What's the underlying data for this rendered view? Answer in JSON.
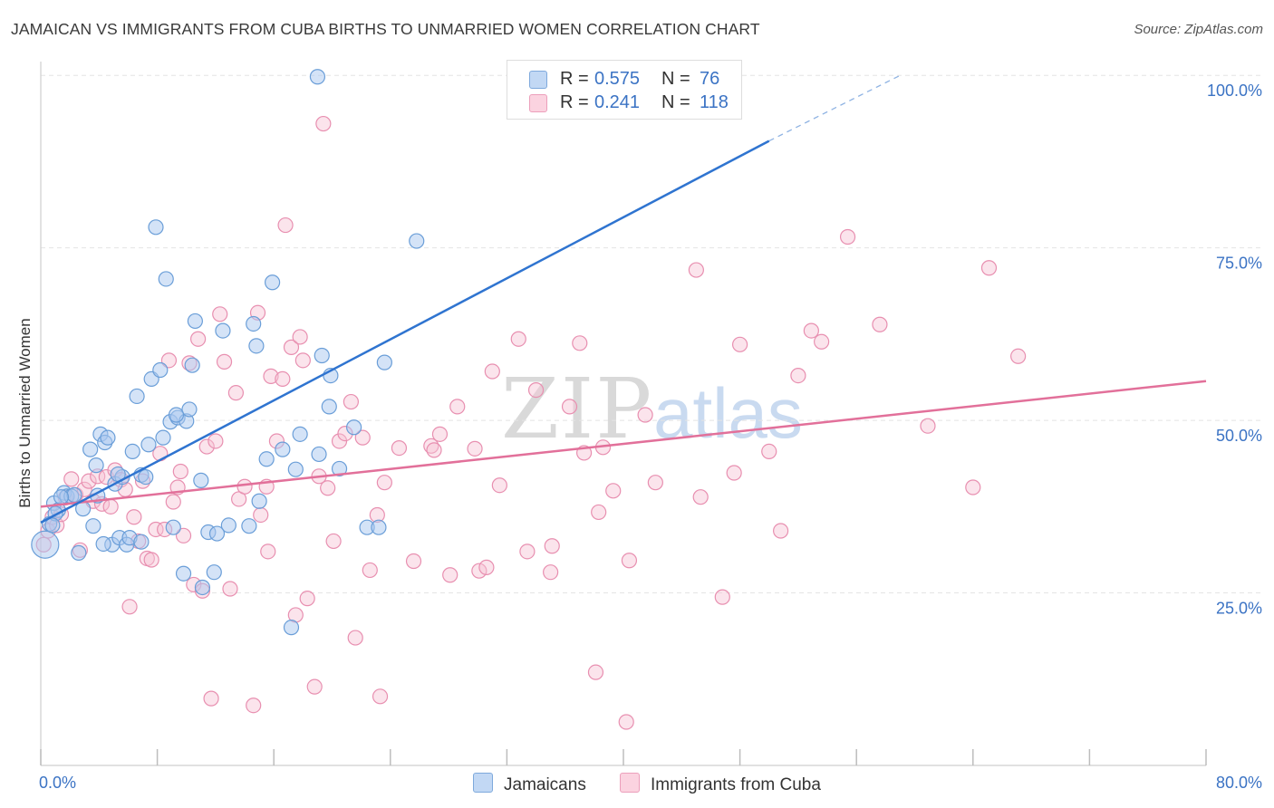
{
  "header": {
    "title": "JAMAICAN VS IMMIGRANTS FROM CUBA BIRTHS TO UNMARRIED WOMEN CORRELATION CHART",
    "source": "Source: ZipAtlas.com"
  },
  "watermark": {
    "zip": "ZIP",
    "atlas": "atlas"
  },
  "colors": {
    "jamaicans_fill": "#a9c8f0",
    "jamaicans_stroke": "#6a9ed8",
    "jamaicans_line": "#2f74d0",
    "cuba_fill": "#f7c4d4",
    "cuba_stroke": "#e88fb0",
    "cuba_line": "#e2709a",
    "axis_label": "#3b73c4",
    "grid": "#e4e4e4"
  },
  "legend": {
    "rows": [
      {
        "r_label": "R =",
        "r_value": "0.575",
        "n_label": "N =",
        "n_value": "76"
      },
      {
        "r_label": "R =",
        "r_value": "0.241",
        "n_label": "N =",
        "n_value": "118"
      }
    ]
  },
  "bottom_legend": {
    "series1": "Jamaicans",
    "series2": "Immigrants from Cuba"
  },
  "chart_data": {
    "type": "scatter",
    "title": "JAMAICAN VS IMMIGRANTS FROM CUBA BIRTHS TO UNMARRIED WOMEN CORRELATION CHART",
    "xlabel": "",
    "ylabel": "Births to Unmarried Women",
    "xlim": [
      0,
      80
    ],
    "ylim": [
      0,
      102
    ],
    "x_tick_labels": [
      "0.0%",
      "80.0%"
    ],
    "y_ticks": [
      25,
      50,
      75,
      100
    ],
    "y_tick_labels": [
      "25.0%",
      "50.0%",
      "75.0%",
      "100.0%"
    ],
    "grid": true,
    "legend_position": "top-center",
    "series": [
      {
        "name": "Jamaicans",
        "R": 0.575,
        "N": 76,
        "trend": {
          "x0": 0,
          "y0": 35.2,
          "x1": 50,
          "y1": 90.5,
          "dashed_to_x": 59,
          "dashed_to_y": 100
        },
        "points": [
          [
            0.3,
            32
          ],
          [
            0.6,
            35
          ],
          [
            0.9,
            38
          ],
          [
            1.2,
            37
          ],
          [
            1.6,
            39.5
          ],
          [
            1.8,
            39
          ],
          [
            2.1,
            39
          ],
          [
            2.6,
            30.8
          ],
          [
            2.9,
            37.2
          ],
          [
            3.4,
            45.8
          ],
          [
            3.6,
            34.7
          ],
          [
            3.8,
            43.5
          ],
          [
            4.1,
            48
          ],
          [
            4.4,
            46.8
          ],
          [
            4.6,
            47.5
          ],
          [
            4.9,
            32
          ],
          [
            5.1,
            40.8
          ],
          [
            5.4,
            33
          ],
          [
            5.6,
            41.8
          ],
          [
            5.9,
            32
          ],
          [
            6.1,
            33
          ],
          [
            6.3,
            45.5
          ],
          [
            6.6,
            53.5
          ],
          [
            6.9,
            42.1
          ],
          [
            7.2,
            41.8
          ],
          [
            7.4,
            46.5
          ],
          [
            7.6,
            56
          ],
          [
            7.9,
            78
          ],
          [
            8.2,
            57.3
          ],
          [
            8.4,
            47.5
          ],
          [
            8.6,
            70.5
          ],
          [
            8.9,
            49.8
          ],
          [
            9.1,
            34.5
          ],
          [
            9.4,
            50.4
          ],
          [
            9.8,
            27.8
          ],
          [
            10.0,
            49.9
          ],
          [
            10.2,
            51.6
          ],
          [
            10.4,
            58
          ],
          [
            10.6,
            64.4
          ],
          [
            11.0,
            41.3
          ],
          [
            11.1,
            25.8
          ],
          [
            11.5,
            33.8
          ],
          [
            11.9,
            28
          ],
          [
            12.5,
            63
          ],
          [
            12.9,
            34.8
          ],
          [
            14.3,
            34.7
          ],
          [
            14.6,
            64
          ],
          [
            14.8,
            60.8
          ],
          [
            15.0,
            38.3
          ],
          [
            15.9,
            70
          ],
          [
            16.6,
            45.8
          ],
          [
            17.2,
            20
          ],
          [
            17.5,
            42.9
          ],
          [
            17.8,
            48
          ],
          [
            19.1,
            45.1
          ],
          [
            19.3,
            59.4
          ],
          [
            19.8,
            52
          ],
          [
            19.9,
            56.5
          ],
          [
            20.5,
            43
          ],
          [
            21.5,
            49
          ],
          [
            22.4,
            34.5
          ],
          [
            23.2,
            34.5
          ],
          [
            23.6,
            58.4
          ],
          [
            25.8,
            76
          ],
          [
            19.0,
            99.8
          ],
          [
            1.0,
            36.5
          ],
          [
            2.3,
            39.2
          ],
          [
            1.4,
            38.9
          ],
          [
            0.8,
            34.8
          ],
          [
            6.9,
            32.4
          ],
          [
            3.9,
            39.1
          ],
          [
            5.3,
            42.2
          ],
          [
            9.3,
            50.8
          ],
          [
            12.1,
            33.6
          ],
          [
            15.5,
            44.4
          ],
          [
            4.3,
            32.1
          ]
        ]
      },
      {
        "name": "Immigrants from Cuba",
        "R": 0.241,
        "N": 118,
        "trend": {
          "x0": 0,
          "y0": 37.5,
          "x1": 80,
          "y1": 55.7
        },
        "points": [
          [
            0.2,
            32
          ],
          [
            0.5,
            34
          ],
          [
            0.8,
            36
          ],
          [
            1.1,
            34.8
          ],
          [
            1.4,
            36.4
          ],
          [
            1.7,
            38.8
          ],
          [
            2.1,
            41.5
          ],
          [
            2.4,
            39.2
          ],
          [
            2.7,
            31.2
          ],
          [
            3.0,
            40
          ],
          [
            3.3,
            41.2
          ],
          [
            3.6,
            38.3
          ],
          [
            3.9,
            41.9
          ],
          [
            4.2,
            37.9
          ],
          [
            4.5,
            41.8
          ],
          [
            4.8,
            37.5
          ],
          [
            5.1,
            42.8
          ],
          [
            5.5,
            41.4
          ],
          [
            5.8,
            40
          ],
          [
            6.1,
            23
          ],
          [
            6.4,
            36
          ],
          [
            6.7,
            32.5
          ],
          [
            7.0,
            41.2
          ],
          [
            7.3,
            30
          ],
          [
            7.6,
            29.8
          ],
          [
            7.9,
            34.2
          ],
          [
            8.2,
            45.2
          ],
          [
            8.5,
            34.2
          ],
          [
            8.8,
            58.7
          ],
          [
            9.1,
            38.2
          ],
          [
            9.4,
            40.3
          ],
          [
            9.8,
            33.3
          ],
          [
            10.2,
            58.3
          ],
          [
            10.5,
            26.2
          ],
          [
            10.8,
            61.8
          ],
          [
            11.1,
            25.3
          ],
          [
            11.4,
            46.2
          ],
          [
            11.7,
            9.7
          ],
          [
            12.0,
            47
          ],
          [
            12.3,
            65.4
          ],
          [
            12.6,
            58.5
          ],
          [
            13.0,
            25.6
          ],
          [
            13.4,
            54
          ],
          [
            13.6,
            38.6
          ],
          [
            14.0,
            40.4
          ],
          [
            14.6,
            8.7
          ],
          [
            14.9,
            65.6
          ],
          [
            15.5,
            40.4
          ],
          [
            15.6,
            31
          ],
          [
            15.8,
            56.4
          ],
          [
            16.2,
            47
          ],
          [
            16.6,
            56
          ],
          [
            16.8,
            78.3
          ],
          [
            17.2,
            60.6
          ],
          [
            17.5,
            21.8
          ],
          [
            17.8,
            62.1
          ],
          [
            18.0,
            58.7
          ],
          [
            18.3,
            24.2
          ],
          [
            18.8,
            11.4
          ],
          [
            19.1,
            41.9
          ],
          [
            19.4,
            93
          ],
          [
            19.7,
            40.2
          ],
          [
            20.1,
            32.5
          ],
          [
            20.5,
            47
          ],
          [
            20.9,
            48.1
          ],
          [
            21.3,
            52.7
          ],
          [
            21.6,
            18.5
          ],
          [
            22.1,
            47.5
          ],
          [
            22.6,
            28.3
          ],
          [
            23.1,
            36.3
          ],
          [
            23.3,
            10
          ],
          [
            23.6,
            41
          ],
          [
            24.6,
            46
          ],
          [
            25.6,
            29.6
          ],
          [
            26.8,
            46.3
          ],
          [
            27.4,
            48
          ],
          [
            28.1,
            27.6
          ],
          [
            28.6,
            52
          ],
          [
            29.8,
            45.9
          ],
          [
            30.1,
            28.2
          ],
          [
            30.6,
            28.7
          ],
          [
            31.0,
            57.1
          ],
          [
            31.5,
            40.6
          ],
          [
            32.8,
            61.8
          ],
          [
            33.4,
            31
          ],
          [
            34.0,
            54.4
          ],
          [
            35.0,
            28
          ],
          [
            35.1,
            31.8
          ],
          [
            36.3,
            52
          ],
          [
            37.0,
            61.2
          ],
          [
            37.3,
            45.3
          ],
          [
            38.1,
            13.5
          ],
          [
            38.3,
            36.7
          ],
          [
            38.6,
            46.1
          ],
          [
            39.3,
            39.8
          ],
          [
            40.2,
            6.3
          ],
          [
            40.4,
            29.7
          ],
          [
            41.5,
            50.8
          ],
          [
            42.2,
            41
          ],
          [
            45.0,
            71.8
          ],
          [
            45.3,
            38.9
          ],
          [
            46.8,
            24.4
          ],
          [
            47.6,
            42.4
          ],
          [
            48.0,
            61
          ],
          [
            50.0,
            45.5
          ],
          [
            50.8,
            34
          ],
          [
            52.0,
            56.5
          ],
          [
            52.9,
            63
          ],
          [
            53.6,
            61.4
          ],
          [
            55.4,
            76.6
          ],
          [
            57.6,
            63.9
          ],
          [
            60.9,
            49.2
          ],
          [
            64.0,
            40.3
          ],
          [
            65.1,
            72.1
          ],
          [
            67.1,
            59.3
          ],
          [
            15.1,
            36.3
          ],
          [
            9.6,
            42.6
          ],
          [
            27.0,
            45.7
          ]
        ]
      }
    ]
  }
}
